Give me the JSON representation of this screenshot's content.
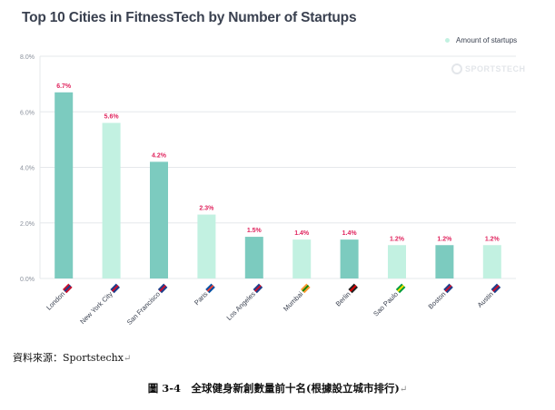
{
  "chart_data": {
    "type": "bar",
    "title": "Top 10 Cities in FitnessTech by Number of Startups",
    "categories": [
      "London",
      "New York City",
      "San Francisco",
      "Paris",
      "Los Angeles",
      "Mumbai",
      "Berlin",
      "Sao Paulo",
      "Boston",
      "Austin"
    ],
    "series": [
      {
        "name": "Amount of startups",
        "values": [
          6.7,
          5.6,
          4.2,
          2.3,
          1.5,
          1.4,
          1.4,
          1.2,
          1.2,
          1.2
        ]
      }
    ],
    "data_labels": [
      "6.7%",
      "5.6%",
      "4.2%",
      "2.3%",
      "1.5%",
      "1.4%",
      "1.4%",
      "1.2%",
      "1.2%",
      "1.2%"
    ],
    "yticks": [
      0,
      2,
      4,
      6,
      8
    ],
    "ytick_labels": [
      "0.0%",
      "2.0%",
      "4.0%",
      "6.0%",
      "8.0%"
    ],
    "ylim": [
      0,
      8
    ],
    "xlabel": "",
    "ylabel": "",
    "grid": true,
    "legend_position": "top-right",
    "flags": [
      "gb",
      "us",
      "us",
      "fr",
      "us",
      "in",
      "de",
      "br",
      "us",
      "us"
    ]
  },
  "colors": {
    "bar_dark": "#7ccbbf",
    "bar_light": "#c2f1e1",
    "data_label": "#e0245e",
    "axis_text": "#8a919c",
    "grid": "#e6e8eb",
    "title": "#3a4150"
  },
  "watermark": "SPORTSTECH",
  "source_text": "資料來源：Sportstechx",
  "caption": "圖 3-4　全球健身新創數量前十名(根據設立城市排行)",
  "paragraph_mark": "↵"
}
